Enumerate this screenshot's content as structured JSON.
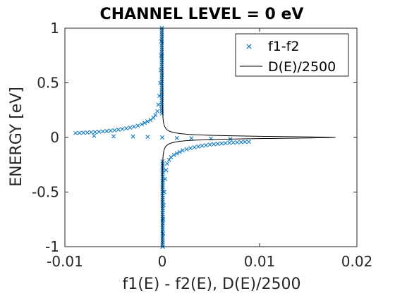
{
  "chart_data": {
    "type": "scatter",
    "title": "CHANNEL LEVEL = 0 eV",
    "xlabel": "f1(E) - f2(E), D(E)/2500",
    "ylabel": "ENERGY  [eV]",
    "xlim": [
      -0.01,
      0.02
    ],
    "ylim": [
      -1,
      1
    ],
    "xticks": [
      -0.01,
      0,
      0.01,
      0.02
    ],
    "xtick_labels": [
      "-0.01",
      "0",
      "0.01",
      "0.02"
    ],
    "yticks": [
      -1,
      -0.5,
      0,
      0.5,
      1
    ],
    "ytick_labels": [
      "-1",
      "-0.5",
      "0",
      "0.5",
      "1"
    ],
    "grid": false,
    "legend_position": "top-right",
    "series": [
      {
        "name": "f1-f2",
        "marker": "x",
        "color": "#0072BD",
        "upper_branch": [
          [
            -0.0089,
            0.04
          ],
          [
            -0.0085,
            0.041
          ],
          [
            -0.0081,
            0.043
          ],
          [
            -0.0077,
            0.045
          ],
          [
            -0.0073,
            0.047
          ],
          [
            -0.0069,
            0.049
          ],
          [
            -0.0065,
            0.052
          ],
          [
            -0.0061,
            0.055
          ],
          [
            -0.0057,
            0.058
          ],
          [
            -0.0053,
            0.062
          ],
          [
            -0.0049,
            0.066
          ],
          [
            -0.0045,
            0.071
          ],
          [
            -0.0041,
            0.076
          ],
          [
            -0.0037,
            0.083
          ],
          [
            -0.0033,
            0.09
          ],
          [
            -0.0029,
            0.098
          ],
          [
            -0.0025,
            0.108
          ],
          [
            -0.0021,
            0.12
          ],
          [
            -0.0018,
            0.133
          ],
          [
            -0.0015,
            0.146
          ],
          [
            -0.0012,
            0.16
          ],
          [
            -0.0009,
            0.18
          ],
          [
            -0.0007,
            0.205
          ],
          [
            -0.0005,
            0.24
          ],
          [
            -0.0004,
            0.3
          ],
          [
            -0.0003,
            0.38
          ],
          [
            -0.0002,
            0.5
          ],
          [
            -0.00015,
            0.62
          ],
          [
            -0.0001,
            0.75
          ],
          [
            -8e-05,
            0.88
          ],
          [
            -5e-05,
            1.0
          ]
        ],
        "lower_branch": [
          [
            0.0089,
            -0.04
          ],
          [
            0.0085,
            -0.041
          ],
          [
            0.0081,
            -0.043
          ],
          [
            0.0077,
            -0.045
          ],
          [
            0.0073,
            -0.047
          ],
          [
            0.0069,
            -0.049
          ],
          [
            0.0065,
            -0.052
          ],
          [
            0.0061,
            -0.055
          ],
          [
            0.0057,
            -0.058
          ],
          [
            0.0053,
            -0.062
          ],
          [
            0.0049,
            -0.066
          ],
          [
            0.0045,
            -0.071
          ],
          [
            0.0041,
            -0.076
          ],
          [
            0.0037,
            -0.083
          ],
          [
            0.0033,
            -0.09
          ],
          [
            0.0029,
            -0.098
          ],
          [
            0.0025,
            -0.108
          ],
          [
            0.0021,
            -0.12
          ],
          [
            0.0018,
            -0.133
          ],
          [
            0.0015,
            -0.146
          ],
          [
            0.0012,
            -0.16
          ],
          [
            0.0009,
            -0.18
          ],
          [
            0.0007,
            -0.205
          ],
          [
            0.0005,
            -0.24
          ],
          [
            0.0004,
            -0.3
          ],
          [
            0.0003,
            -0.38
          ],
          [
            0.0002,
            -0.5
          ],
          [
            0.00015,
            -0.62
          ],
          [
            0.0001,
            -0.75
          ],
          [
            8e-05,
            -0.88
          ],
          [
            5e-05,
            -1.0
          ]
        ],
        "center_points": [
          [
            -0.007,
            0.015
          ],
          [
            -0.005,
            0.01
          ],
          [
            -0.003,
            0.008
          ],
          [
            -0.0015,
            0.005
          ],
          [
            0,
            0.0
          ],
          [
            0.0015,
            -0.005
          ],
          [
            0.003,
            -0.008
          ],
          [
            0.005,
            -0.01
          ],
          [
            0.007,
            -0.015
          ]
        ]
      },
      {
        "name": "D(E)/2500",
        "marker": "line",
        "color": "#000000",
        "x_peak": 0.0178,
        "broadening_eV": 0.012
      }
    ]
  }
}
